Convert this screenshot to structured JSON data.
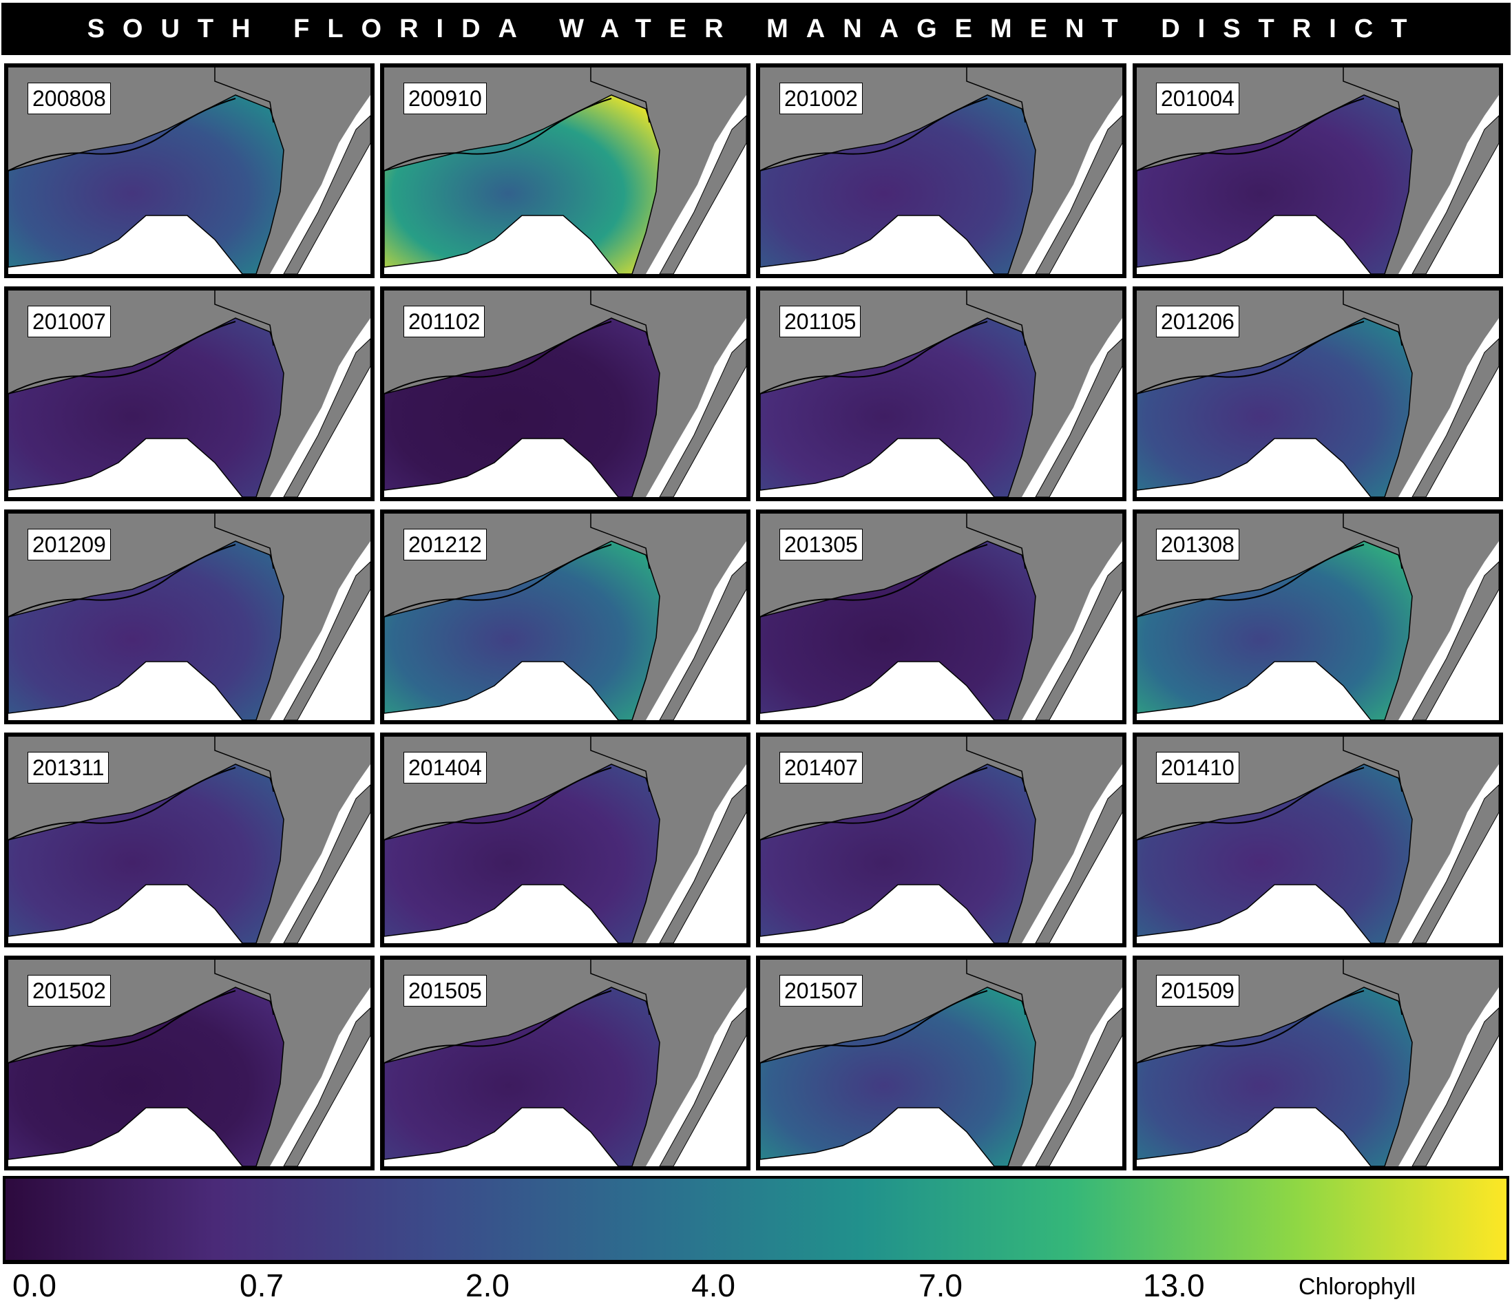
{
  "header": {
    "title": "SOUTH FLORIDA WATER MANAGEMENT DISTRICT"
  },
  "panels": [
    {
      "label": "200808",
      "tone": 0.32
    },
    {
      "label": "200910",
      "tone": 0.62
    },
    {
      "label": "201002",
      "tone": 0.22
    },
    {
      "label": "201004",
      "tone": 0.14
    },
    {
      "label": "201007",
      "tone": 0.12
    },
    {
      "label": "201102",
      "tone": 0.05
    },
    {
      "label": "201105",
      "tone": 0.15
    },
    {
      "label": "201206",
      "tone": 0.3
    },
    {
      "label": "201209",
      "tone": 0.22
    },
    {
      "label": "201212",
      "tone": 0.4
    },
    {
      "label": "201305",
      "tone": 0.1
    },
    {
      "label": "201308",
      "tone": 0.42
    },
    {
      "label": "201311",
      "tone": 0.18
    },
    {
      "label": "201404",
      "tone": 0.14
    },
    {
      "label": "201407",
      "tone": 0.16
    },
    {
      "label": "201410",
      "tone": 0.24
    },
    {
      "label": "201502",
      "tone": 0.06
    },
    {
      "label": "201505",
      "tone": 0.13
    },
    {
      "label": "201507",
      "tone": 0.36
    },
    {
      "label": "201509",
      "tone": 0.3
    }
  ],
  "colorbar": {
    "title": "Chlorophyll",
    "ticks": [
      "0.0",
      "0.7",
      "2.0",
      "4.0",
      "7.0",
      "13.0"
    ],
    "stops": [
      "#2d0a3e",
      "#4a2a78",
      "#3b4c8a",
      "#2c6e8e",
      "#21918c",
      "#35b779",
      "#8fd744",
      "#fde725"
    ]
  },
  "map_colors": {
    "land": "#808080",
    "outline": "#000000",
    "no_data": "#ffffff"
  }
}
